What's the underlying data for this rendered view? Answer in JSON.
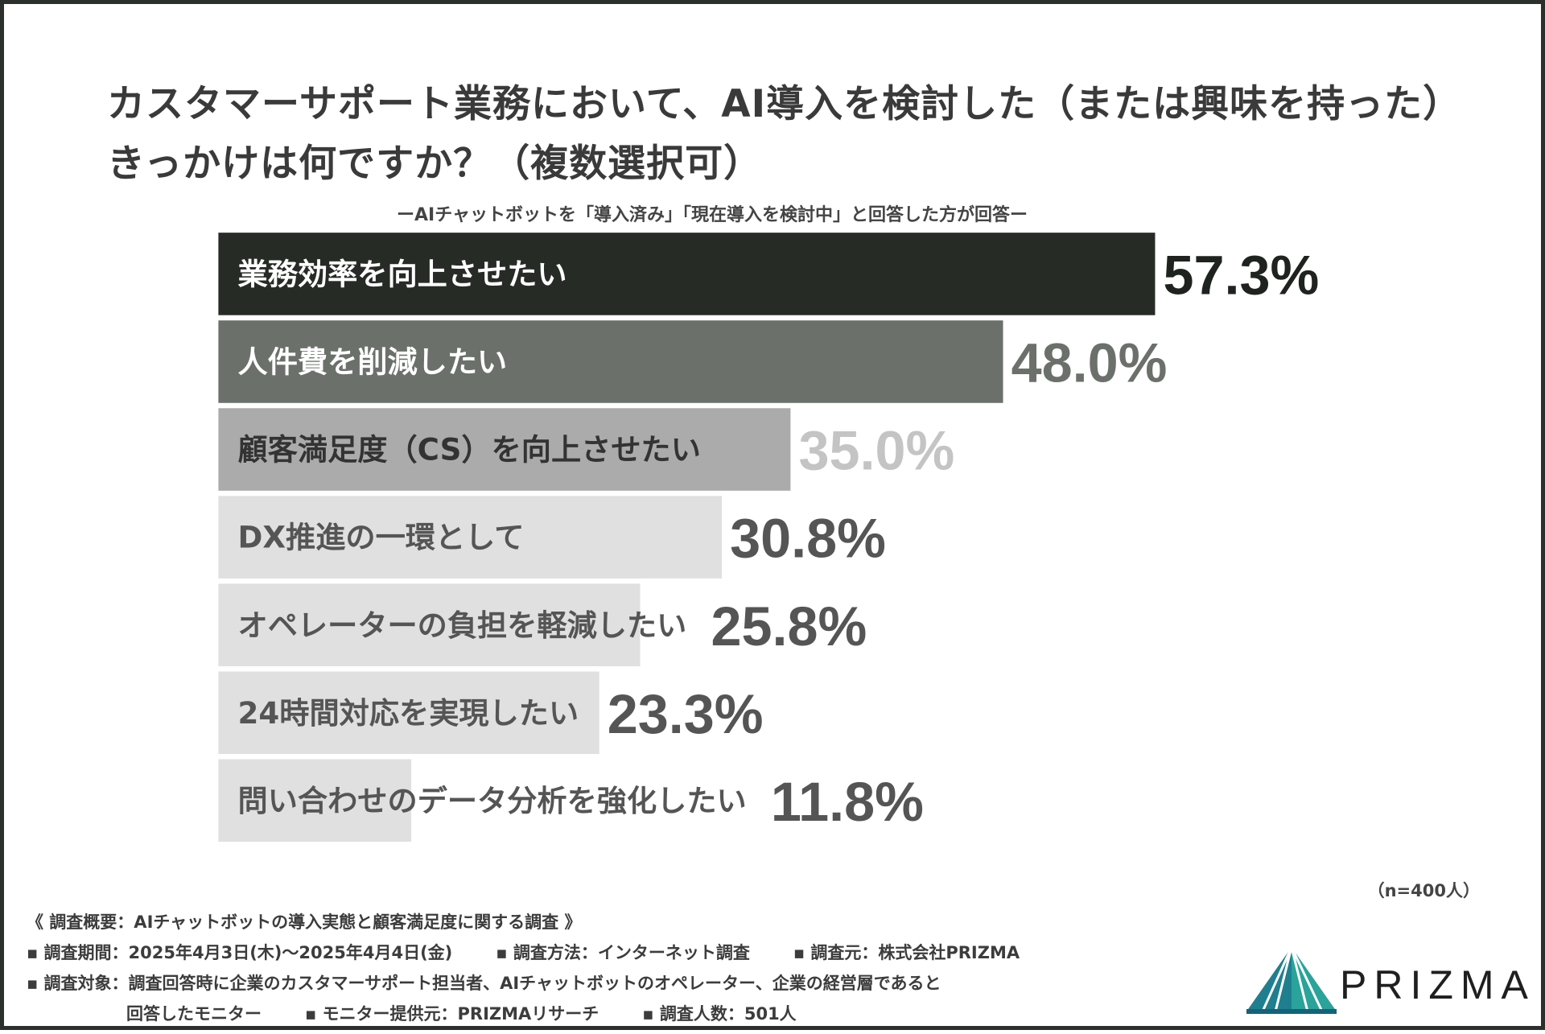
{
  "title": {
    "line1": "カスタマーサポート業務において、AI導入を検討した（または興味を持った）",
    "line2": "きっかけは何ですか？（複数選択可）"
  },
  "subtitle": "ーAIチャットボットを「導入済み」「現在導入を検討中」と回答した方が回答ー",
  "sample_size": "（n=400人）",
  "chart_data": {
    "type": "bar",
    "orientation": "horizontal",
    "categories": [
      "業務効率を向上させたい",
      "人件費を削減したい",
      "顧客満足度（CS）を向上させたい",
      "DX推進の一環として",
      "オペレーターの負担を軽減したい",
      "24時間対応を実現したい",
      "問い合わせのデータ分析を強化したい"
    ],
    "values": [
      57.3,
      48.0,
      35.0,
      30.8,
      25.8,
      23.3,
      11.8
    ],
    "value_labels": [
      "57.3%",
      "48.0%",
      "35.0%",
      "30.8%",
      "25.8%",
      "23.3%",
      "11.8%"
    ],
    "bar_colors": [
      "#262b26",
      "#6b706b",
      "#ababab",
      "#e0e0e0",
      "#e0e0e0",
      "#e0e0e0",
      "#e0e0e0"
    ],
    "category_label_colors": [
      "#ffffff",
      "#ffffff",
      "#333333",
      "#555555",
      "#555555",
      "#555555",
      "#555555"
    ],
    "value_label_colors": [
      "#1f231f",
      "#6b706b",
      "#c4c4c4",
      "#555555",
      "#555555",
      "#555555",
      "#555555"
    ],
    "unit": "%",
    "xlim": [
      0,
      57.3
    ],
    "grid": false,
    "legend": "none"
  },
  "footer": {
    "overview": "《 調査概要：AIチャットボットの導入実態と顧客満足度に関する調査 》",
    "period": "▪ 調査期間：2025年4月3日(木)〜2025年4月4日(金)",
    "method": "▪ 調査方法：インターネット調査",
    "organizer": "▪ 調査元：株式会社PRIZMA",
    "target_line1": "▪ 調査対象：調査回答時に企業のカスタマーサポート担当者、AIチャットボットのオペレーター、企業の経営層であると",
    "target_line2": "回答したモニター",
    "monitor_provider": "▪ モニター提供元：PRIZMAリサーチ",
    "respondents": "▪ 調査人数：501人"
  },
  "logo": {
    "text": "PRIZMA",
    "icon": "prism-triangle-icon",
    "colors": [
      "#1f7f8f",
      "#2aa39a",
      "#18607a"
    ]
  }
}
